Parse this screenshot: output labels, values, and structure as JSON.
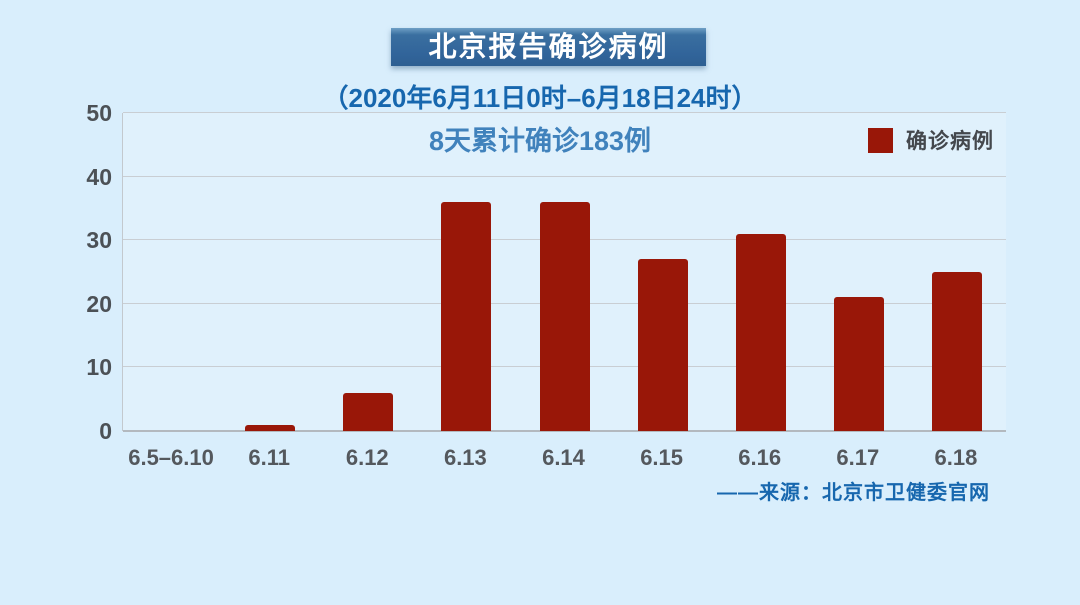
{
  "page": {
    "background_color": "#d9eefc",
    "accent_blue": "#1767ae"
  },
  "header": {
    "title": "北京报告确诊病例",
    "banner_color": "#31649a",
    "subtitle": "（2020年6月11日0时–6月18日24时）"
  },
  "chart_data": {
    "type": "bar",
    "title": "8天累计确诊183例",
    "categories": [
      "6.5–6.10",
      "6.11",
      "6.12",
      "6.13",
      "6.14",
      "6.15",
      "6.16",
      "6.17",
      "6.18"
    ],
    "values": [
      0,
      1,
      6,
      36,
      36,
      27,
      31,
      21,
      25
    ],
    "xlabel": "",
    "ylabel": "",
    "ylim": [
      0,
      50
    ],
    "yticks": [
      0,
      10,
      20,
      30,
      40,
      50
    ],
    "grid": true,
    "bar_color": "#991708",
    "legend": [
      {
        "label": "确诊病例",
        "color": "#991708"
      }
    ],
    "legend_position": "top-right",
    "source": "——来源：北京市卫健委官网"
  }
}
